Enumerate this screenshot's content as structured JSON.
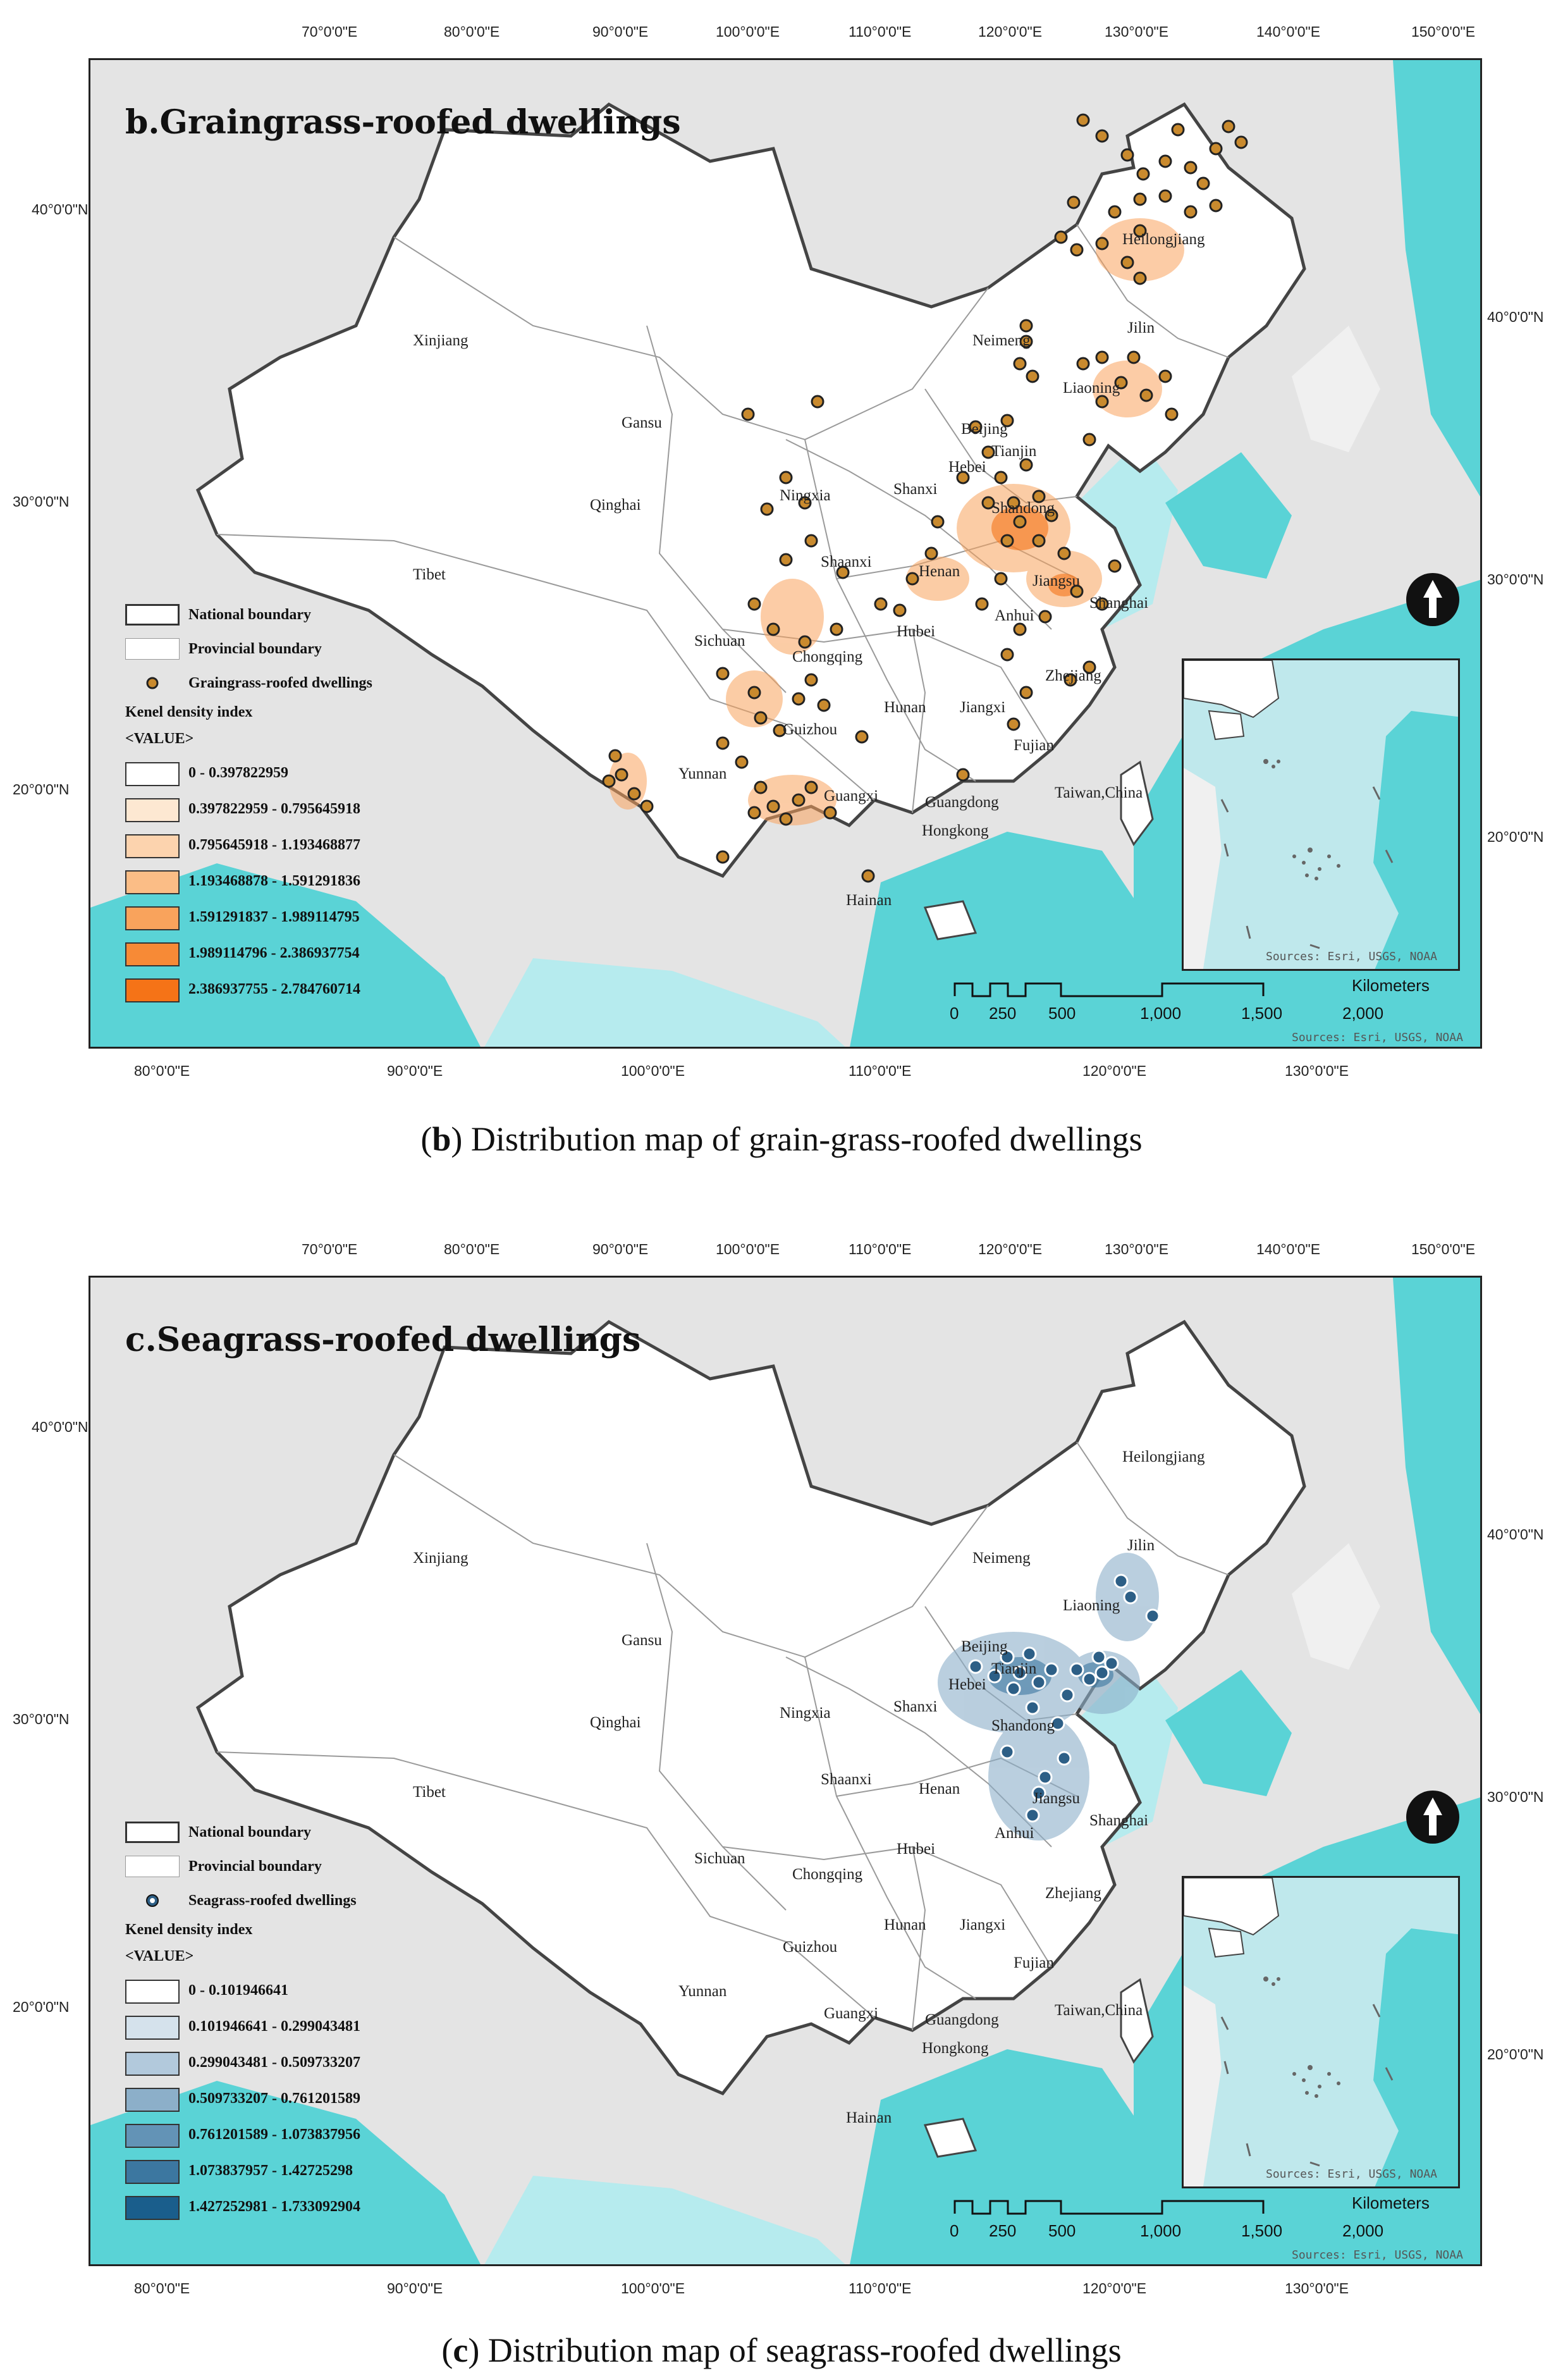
{
  "panel_b": {
    "title": "b.Graingrass-roofed dwellings",
    "caption_letter": "b",
    "caption_text": ") Distribution map of grain-grass-roofed dwellings",
    "top_lon": [
      "70°0'0\"E",
      "80°0'0\"E",
      "90°0'0\"E",
      "100°0'0\"E",
      "110°0'0\"E",
      "120°0'0\"E",
      "130°0'0\"E",
      "140°0'0\"E",
      "150°0'0\"E"
    ],
    "bottom_lon": [
      "80°0'0\"E",
      "90°0'0\"E",
      "100°0'0\"E",
      "110°0'0\"E",
      "120°0'0\"E",
      "130°0'0\"E"
    ],
    "left_lat": [
      "40°0'0\"N",
      "30°0'0\"N",
      "20°0'0\"N"
    ],
    "right_lat": [
      "40°0'0\"N",
      "30°0'0\"N",
      "20°0'0\"N"
    ],
    "legend": {
      "national": "National boundary",
      "provincial": "Provincial boundary",
      "points": "Graingrass-roofed dwellings",
      "density_title": "Kenel density index",
      "value_header": "<VALUE>",
      "classes": [
        {
          "label": "0 - 0.397822959",
          "color": "#ffffff"
        },
        {
          "label": "0.397822959 - 0.795645918",
          "color": "#fde8d2"
        },
        {
          "label": "0.795645918 - 1.193468877",
          "color": "#fcd3ae"
        },
        {
          "label": "1.193468878 - 1.591291836",
          "color": "#fbbd86"
        },
        {
          "label": "1.591291837 - 1.989114795",
          "color": "#f9a35c"
        },
        {
          "label": "1.989114796 - 2.386937754",
          "color": "#f78a36"
        },
        {
          "label": "2.386937755 - 2.784760714",
          "color": "#f57317"
        }
      ]
    },
    "point_color": "#c98a2e"
  },
  "panel_c": {
    "title": "c.Seagrass-roofed dwellings",
    "caption_letter": "c",
    "caption_text": ") Distribution map of seagrass-roofed dwellings",
    "top_lon": [
      "70°0'0\"E",
      "80°0'0\"E",
      "90°0'0\"E",
      "100°0'0\"E",
      "110°0'0\"E",
      "120°0'0\"E",
      "130°0'0\"E",
      "140°0'0\"E",
      "150°0'0\"E"
    ],
    "bottom_lon": [
      "80°0'0\"E",
      "90°0'0\"E",
      "100°0'0\"E",
      "110°0'0\"E",
      "120°0'0\"E",
      "130°0'0\"E"
    ],
    "left_lat": [
      "40°0'0\"N",
      "30°0'0\"N",
      "20°0'0\"N"
    ],
    "right_lat": [
      "40°0'0\"N",
      "30°0'0\"N",
      "20°0'0\"N"
    ],
    "legend": {
      "national": "National boundary",
      "provincial": "Provincial boundary",
      "points": "Seagrass-roofed dwellings",
      "density_title": "Kenel density index",
      "value_header": "<VALUE>",
      "classes": [
        {
          "label": "0 - 0.101946641",
          "color": "#ffffff"
        },
        {
          "label": "0.101946641 - 0.299043481",
          "color": "#d5e2ec"
        },
        {
          "label": "0.299043481 - 0.509733207",
          "color": "#b2c9dc"
        },
        {
          "label": "0.509733207 - 0.761201589",
          "color": "#8cafc9"
        },
        {
          "label": "0.761201589 - 1.073837956",
          "color": "#6393b6"
        },
        {
          "label": "1.073837957 - 1.42725298",
          "color": "#3c77a0"
        },
        {
          "label": "1.427252981 - 1.733092904",
          "color": "#1a5e8c"
        }
      ]
    },
    "point_color": "#2d5f86"
  },
  "provinces": [
    "Xinjiang",
    "Tibet",
    "Qinghai",
    "Gansu",
    "Neimeng",
    "Heilongjiang",
    "Jilin",
    "Liaoning",
    "Beijing",
    "Tianjin",
    "Hebei",
    "Shanxi",
    "Ningxia",
    "Shaanxi",
    "Shandong",
    "Henan",
    "Jiangsu",
    "Anhui",
    "Shanghai",
    "Hubei",
    "Sichuan",
    "Chongqing",
    "Zhejiang",
    "Hunan",
    "Jiangxi",
    "Guizhou",
    "Fujian",
    "Yunnan",
    "Guangxi",
    "Guangdong",
    "Hongkong",
    "Taiwan,China",
    "Hainan"
  ],
  "scale": {
    "ticks": [
      "0",
      "250",
      "500",
      "1,000",
      "1,500",
      "2,000"
    ],
    "unit": "Kilometers"
  },
  "sources_inset": "Sources: Esri, USGS, NOAA",
  "sources_main": "Sources: Esri, USGS, NOAA",
  "colors": {
    "sea": "#5ad3d6",
    "sea_light": "#b6ebee",
    "land_outside": "#d9d9d9",
    "china": "#ffffff"
  }
}
